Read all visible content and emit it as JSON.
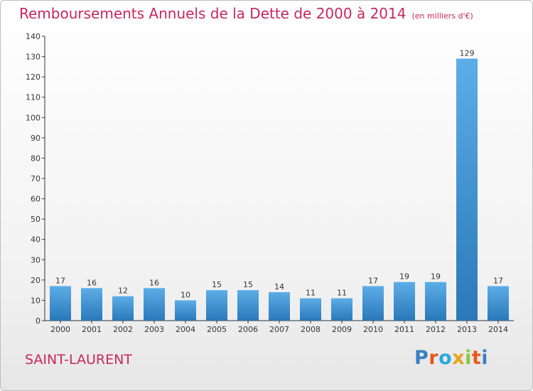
{
  "header": {
    "title": "Remboursements Annuels de la Dette de 2000 à 2014",
    "unit": "(en milliers d'€)"
  },
  "footer": {
    "commune": "SAINT-LAURENT",
    "logo_text": "Proxiti",
    "logo_colors": [
      "#3a7fc4",
      "#e8581c",
      "#2aa8df",
      "#e8a21c",
      "#8cc63f",
      "#e8581c",
      "#3a7fc4"
    ]
  },
  "chart_data": {
    "type": "bar",
    "title": "Remboursements Annuels de la Dette de 2000 à 2014",
    "subtitle": "(en milliers d'€)",
    "categories": [
      "2000",
      "2001",
      "2002",
      "2003",
      "2004",
      "2005",
      "2006",
      "2007",
      "2008",
      "2009",
      "2010",
      "2011",
      "2012",
      "2013",
      "2014"
    ],
    "values": [
      17,
      16,
      12,
      16,
      10,
      15,
      15,
      14,
      11,
      11,
      17,
      19,
      19,
      129,
      17
    ],
    "ylim": [
      0,
      140
    ],
    "yticks": [
      0,
      10,
      20,
      30,
      40,
      50,
      60,
      70,
      80,
      90,
      100,
      110,
      120,
      130,
      140
    ],
    "xlabel": "",
    "ylabel": "",
    "grid": false,
    "bar_color_light": "#5dade8",
    "bar_color_dark": "#2a78b8"
  }
}
